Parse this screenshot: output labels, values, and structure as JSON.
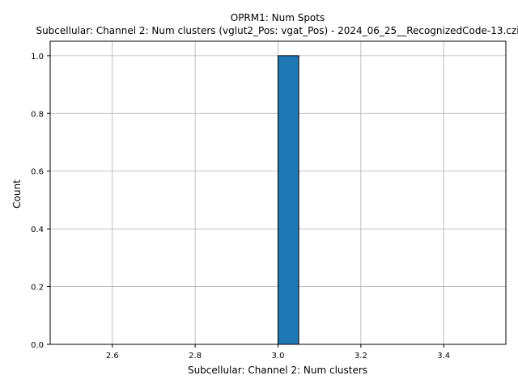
{
  "chart_data": {
    "type": "bar",
    "title": "OPRM1: Num Spots",
    "subtitle": "Subcellular: Channel 2: Num clusters (vglut2_Pos: vgat_Pos) - 2024_06_25__RecognizedCode-13.czi",
    "xlabel": "Subcellular: Channel 2: Num clusters",
    "ylabel": "Count",
    "xlim": [
      2.45,
      3.55
    ],
    "ylim": [
      0,
      1.05
    ],
    "xticks": [
      2.6,
      2.8,
      3.0,
      3.2,
      3.4
    ],
    "yticks": [
      0.0,
      0.2,
      0.4,
      0.6,
      0.8,
      1.0
    ],
    "xtick_labels": [
      "2.6",
      "2.8",
      "3.0",
      "3.2",
      "3.4"
    ],
    "ytick_labels": [
      "0.0",
      "0.2",
      "0.4",
      "0.6",
      "0.8",
      "1.0"
    ],
    "bins": {
      "start": 2.5,
      "end": 3.5,
      "count": 20
    },
    "values": [
      0,
      0,
      0,
      0,
      0,
      0,
      0,
      0,
      0,
      0,
      1,
      0,
      0,
      0,
      0,
      0,
      0,
      0,
      0,
      0
    ],
    "grid": true,
    "colors": {
      "bar_fill": "#1f77b4",
      "bar_edge": "#000000",
      "grid": "#b0b0b0",
      "axes": "#000000"
    }
  }
}
